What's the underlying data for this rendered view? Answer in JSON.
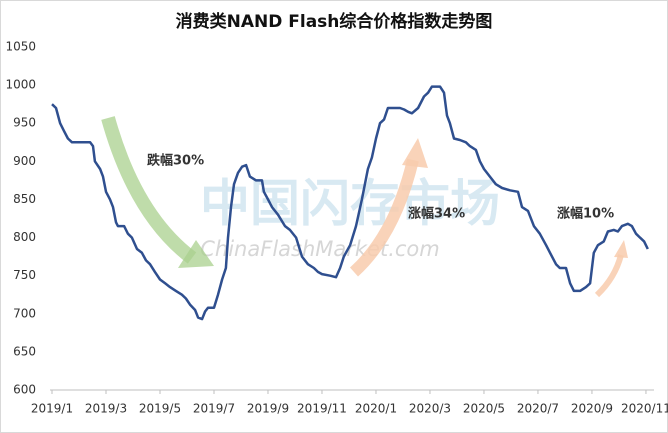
{
  "chart_data": {
    "type": "line",
    "title": "消费类NAND Flash综合价格指数走势图",
    "watermark": "中国闪存市场",
    "watermark_sub": "ChinaFlashMarket.com",
    "annotations": [
      {
        "text": "跌幅30%",
        "color": "#7030a0"
      },
      {
        "text": "涨幅34%",
        "color": "#c00000"
      },
      {
        "text": "涨幅10%",
        "color": "#c00000"
      }
    ],
    "xlim": [
      0,
      22.15
    ],
    "xticks": [
      {
        "value": 0,
        "label": "2019/1"
      },
      {
        "value": 2,
        "label": "2019/3"
      },
      {
        "value": 4,
        "label": "2019/5"
      },
      {
        "value": 6,
        "label": "2019/7"
      },
      {
        "value": 8,
        "label": "2019/9"
      },
      {
        "value": 10,
        "label": "2019/11"
      },
      {
        "value": 12,
        "label": "2020/1"
      },
      {
        "value": 14,
        "label": "2020/3"
      },
      {
        "value": 16,
        "label": "2020/5"
      },
      {
        "value": 18,
        "label": "2020/7"
      },
      {
        "value": 20,
        "label": "2020/9"
      },
      {
        "value": 22,
        "label": "2020/11"
      }
    ],
    "ylim": [
      600,
      1050
    ],
    "yticks": [
      600,
      650,
      700,
      750,
      800,
      850,
      900,
      950,
      1000,
      1050
    ],
    "series": [
      {
        "name": "消费类NAND Flash综合价格指数",
        "color": "#2f4f8f",
        "x": [
          0,
          0.15,
          0.3,
          0.44,
          0.59,
          0.74,
          1.41,
          1.52,
          1.59,
          1.78,
          1.89,
          2,
          2.15,
          2.26,
          2.37,
          2.44,
          2.67,
          2.81,
          2.96,
          3.15,
          3.33,
          3.48,
          3.63,
          3.81,
          4,
          4.19,
          4.37,
          4.59,
          4.81,
          4.96,
          5.11,
          5.3,
          5.41,
          5.56,
          5.67,
          5.78,
          6,
          6.15,
          6.3,
          6.44,
          6.52,
          6.63,
          6.74,
          6.89,
          7.04,
          7.19,
          7.33,
          7.56,
          7.78,
          7.85,
          8,
          8.15,
          8.37,
          8.63,
          8.81,
          9.04,
          9.26,
          9.48,
          9.7,
          9.85,
          10,
          10.3,
          10.52,
          10.67,
          10.81,
          11.04,
          11.26,
          11.48,
          11.7,
          11.85,
          12,
          12.15,
          12.3,
          12.44,
          12.89,
          13.04,
          13.19,
          13.33,
          13.56,
          13.78,
          13.93,
          14.07,
          14.37,
          14.52,
          14.63,
          14.74,
          14.89,
          15.11,
          15.33,
          15.48,
          15.7,
          15.85,
          16,
          16.22,
          16.44,
          16.67,
          16.96,
          17.26,
          17.41,
          17.63,
          17.85,
          18.07,
          18.3,
          18.52,
          18.67,
          18.81,
          19.04,
          19.19,
          19.33,
          19.56,
          19.78,
          19.93,
          20.07,
          20.22,
          20.44,
          20.59,
          20.81,
          20.96,
          21.11,
          21.33,
          21.48,
          21.63,
          21.78,
          21.93,
          22.07
        ],
        "values": [
          975,
          970,
          950,
          940,
          930,
          925,
          925,
          920,
          900,
          890,
          880,
          860,
          850,
          840,
          820,
          815,
          815,
          805,
          800,
          785,
          780,
          770,
          765,
          755,
          745,
          740,
          735,
          730,
          725,
          720,
          712,
          705,
          695,
          693,
          703,
          708,
          708,
          725,
          745,
          760,
          800,
          840,
          870,
          885,
          893,
          895,
          880,
          875,
          875,
          860,
          850,
          840,
          830,
          815,
          810,
          800,
          775,
          765,
          760,
          755,
          752,
          750,
          748,
          760,
          775,
          790,
          815,
          850,
          890,
          905,
          930,
          950,
          955,
          970,
          970,
          968,
          965,
          963,
          970,
          985,
          990,
          998,
          998,
          990,
          960,
          950,
          930,
          928,
          925,
          920,
          915,
          900,
          890,
          880,
          870,
          865,
          862,
          860,
          840,
          835,
          815,
          805,
          790,
          775,
          765,
          760,
          760,
          740,
          730,
          730,
          735,
          740,
          780,
          790,
          795,
          808,
          810,
          808,
          815,
          818,
          815,
          805,
          800,
          795,
          785
        ]
      }
    ]
  }
}
